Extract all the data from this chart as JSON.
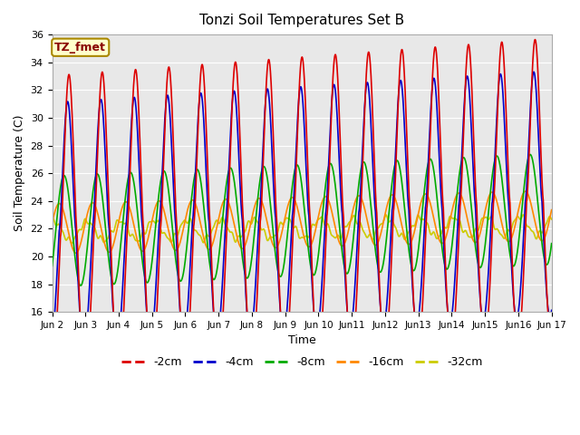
{
  "title": "Tonzi Soil Temperatures Set B",
  "xlabel": "Time",
  "ylabel": "Soil Temperature (C)",
  "ylim": [
    16,
    36
  ],
  "annotation": "TZ_fmet",
  "colors": {
    "-2cm": "#dd0000",
    "-4cm": "#0000cc",
    "-8cm": "#00aa00",
    "-16cm": "#ff8800",
    "-32cm": "#cccc00"
  },
  "legend_labels": [
    "-2cm",
    "-4cm",
    "-8cm",
    "-16cm",
    "-32cm"
  ],
  "x_tick_labels": [
    "Jun 2",
    "Jun 3",
    "Jun 4",
    "Jun 5",
    "Jun 6",
    "Jun 7",
    "Jun 8",
    "Jun 9",
    "Jun 10",
    "Jun11",
    "Jun12",
    "Jun13",
    "Jun14",
    "Jun15",
    "Jun16",
    "Jun 17"
  ],
  "background_color": "#e8e8e8",
  "fig_background": "#ffffff",
  "grid_color": "#ffffff",
  "points_per_day": 240
}
